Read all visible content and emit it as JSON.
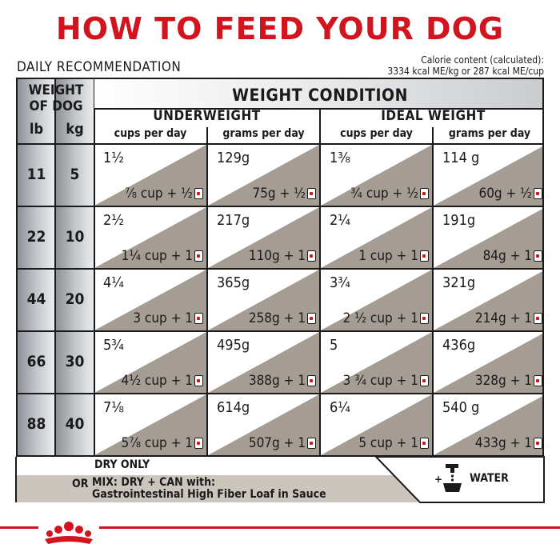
{
  "title": "HOW TO FEED YOUR DOG",
  "daily_label": "DAILY RECOMMENDATION",
  "calorie_line1": "Calorie content (calculated):",
  "calorie_line2": "3334 kcal ME/kg or 287 kcal ME/cup",
  "table": {
    "weight_header_line1": "WEIGHT",
    "weight_header_line2": "OF DOG",
    "lb_header": "lb",
    "kg_header": "kg",
    "condition_header": "WEIGHT CONDITION",
    "underweight_header": "UNDERWEIGHT",
    "ideal_header": "IDEAL WEIGHT",
    "sub_cups": "cups per day",
    "sub_grams": "grams per day",
    "rows": [
      {
        "lb": "11",
        "kg": "5",
        "cells": [
          {
            "dry": "1½",
            "mix": "⅞ cup + ½"
          },
          {
            "dry": "129g",
            "mix": "75g + ½"
          },
          {
            "dry": "1⅜",
            "mix": "¾ cup + ½"
          },
          {
            "dry": "114 g",
            "mix": "60g + ½"
          }
        ]
      },
      {
        "lb": "22",
        "kg": "10",
        "cells": [
          {
            "dry": "2½",
            "mix": "1¼ cup + 1"
          },
          {
            "dry": "217g",
            "mix": "110g + 1"
          },
          {
            "dry": "2¼",
            "mix": "1 cup + 1"
          },
          {
            "dry": "191g",
            "mix": "84g + 1"
          }
        ]
      },
      {
        "lb": "44",
        "kg": "20",
        "cells": [
          {
            "dry": "4¼",
            "mix": "3 cup + 1"
          },
          {
            "dry": "365g",
            "mix": "258g + 1"
          },
          {
            "dry": "3¾",
            "mix": "2 ½ cup + 1"
          },
          {
            "dry": "321g",
            "mix": "214g + 1"
          }
        ]
      },
      {
        "lb": "66",
        "kg": "30",
        "cells": [
          {
            "dry": "5¾",
            "mix": "4½ cup + 1"
          },
          {
            "dry": "495g",
            "mix": "388g + 1"
          },
          {
            "dry": "5",
            "mix": "3 ¾ cup + 1"
          },
          {
            "dry": "436g",
            "mix": "328g + 1"
          }
        ]
      },
      {
        "lb": "88",
        "kg": "40",
        "cells": [
          {
            "dry": "7⅛",
            "mix": "5⅞ cup + 1"
          },
          {
            "dry": "614g",
            "mix": "507g + 1"
          },
          {
            "dry": "6¼",
            "mix": "5 cup + 1"
          },
          {
            "dry": "540 g",
            "mix": "433g + 1"
          }
        ]
      }
    ]
  },
  "legend": {
    "dry_only": "DRY ONLY",
    "or": "OR",
    "mix_line1": "MIX: DRY + CAN with:",
    "mix_line2": "Gastrointestinal High Fiber Loaf in Sauce",
    "water": "WATER",
    "plus": "+"
  },
  "icons": {
    "can": "can-icon",
    "water": "water-tap-bowl-icon",
    "brand": "royal-crown-logo"
  },
  "colors": {
    "brand_red": "#d2141f",
    "cell_gray": "#a59c94"
  }
}
